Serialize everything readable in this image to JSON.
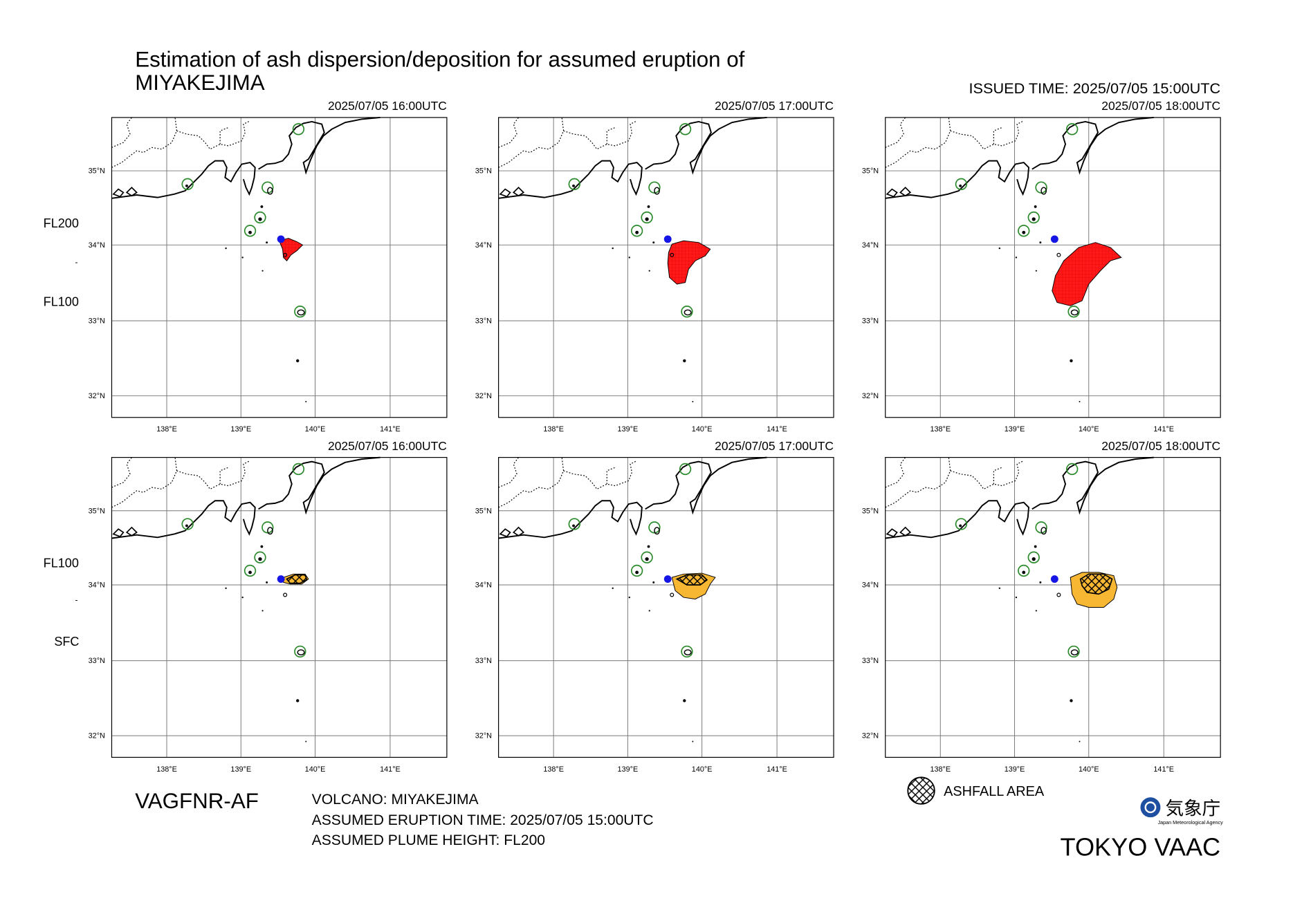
{
  "header": {
    "title_line1": "Estimation of ash dispersion/deposition for assumed eruption of",
    "title_line2": "MIYAKEJIMA",
    "issued": "ISSUED TIME: 2025/07/05 15:00UTC"
  },
  "lat_labels": [
    "35°N",
    "34°N",
    "33°N",
    "32°N"
  ],
  "lon_labels": [
    "138°E",
    "139°E",
    "140°E",
    "141°E"
  ],
  "rows": [
    {
      "levels": [
        "FL200",
        "-",
        "FL100"
      ],
      "panels": [
        {
          "time": "2025/07/05 16:00UTC"
        },
        {
          "time": "2025/07/05 17:00UTC"
        },
        {
          "time": "2025/07/05 18:00UTC"
        }
      ]
    },
    {
      "levels": [
        "FL100",
        "-",
        "SFC"
      ],
      "panels": [
        {
          "time": "2025/07/05 16:00UTC"
        },
        {
          "time": "2025/07/05 17:00UTC"
        },
        {
          "time": "2025/07/05 18:00UTC"
        }
      ]
    }
  ],
  "footer": {
    "product": "VAGFNR-AF",
    "volcano": "VOLCANO: MIYAKEJIMA",
    "eruption_time": "ASSUMED ERUPTION TIME: 2025/07/05 15:00UTC",
    "plume_height": "ASSUMED PLUME HEIGHT: FL200",
    "legend": "ASHFALL AREA",
    "agency_jp": "気象庁",
    "agency_en": "Japan Meteorological Agency",
    "center": "TOKYO VAAC"
  }
}
